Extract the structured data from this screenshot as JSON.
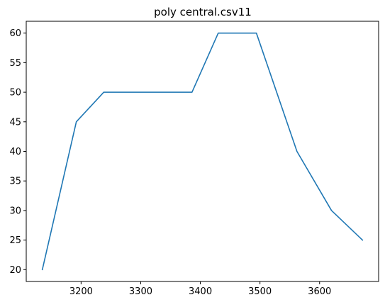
{
  "chart_data": {
    "type": "line",
    "title": "poly central.csv11",
    "xlabel": "",
    "ylabel": "",
    "x": [
      3135,
      3192,
      3238,
      3386,
      3430,
      3494,
      3562,
      3620,
      3672
    ],
    "series": [
      {
        "values": [
          20,
          45,
          50,
          50,
          60,
          60,
          40,
          30,
          25
        ],
        "color": "#1f77b4"
      }
    ],
    "xlim": [
      3108,
      3699
    ],
    "ylim": [
      18,
      62
    ],
    "xticks": [
      3200,
      3300,
      3400,
      3500,
      3600
    ],
    "yticks": [
      20,
      25,
      30,
      35,
      40,
      45,
      50,
      55,
      60
    ],
    "grid": false,
    "legend": "none"
  }
}
